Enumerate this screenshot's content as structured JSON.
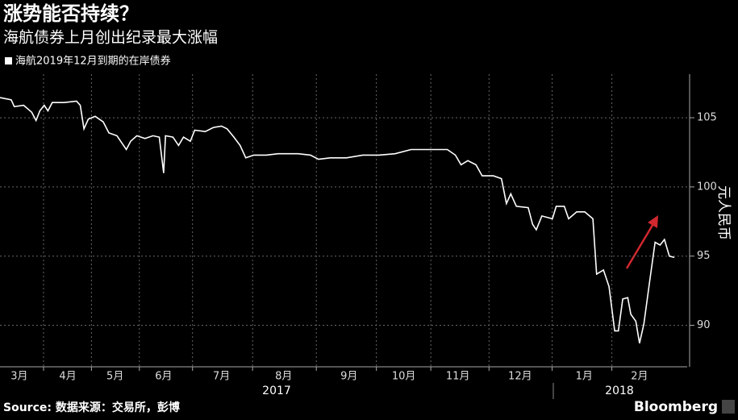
{
  "chart_data": {
    "type": "line",
    "title": "涨势能否持续？",
    "subtitle": "海航债券上月创出纪录最大涨幅",
    "y_label": "元人民币",
    "source": "Source: 数据来源：交易所，彭博",
    "brand": "Bloomberg",
    "year_labels": [
      "2017",
      "2018"
    ],
    "xlim": [
      0.33,
      11.35
    ],
    "ylim": [
      87,
      108.15
    ],
    "yticks": [
      90,
      95,
      100,
      105
    ],
    "xticks": [
      {
        "value": 0.64,
        "label": "3月"
      },
      {
        "value": 1.42,
        "label": "4月"
      },
      {
        "value": 2.18,
        "label": "5月"
      },
      {
        "value": 2.96,
        "label": "6月"
      },
      {
        "value": 3.89,
        "label": "7月"
      },
      {
        "value": 4.89,
        "label": "8月"
      },
      {
        "value": 5.94,
        "label": "9月"
      },
      {
        "value": 6.82,
        "label": "10月"
      },
      {
        "value": 7.69,
        "label": "11月"
      },
      {
        "value": 8.69,
        "label": "12月"
      },
      {
        "value": 9.72,
        "label": "1月"
      },
      {
        "value": 10.61,
        "label": "2月"
      }
    ],
    "grid": true,
    "series": [
      {
        "name": "海航2019年12月到期的在岸债券",
        "color": "#ffffff",
        "x": [
          0.33,
          0.51,
          0.56,
          0.71,
          0.84,
          0.91,
          0.97,
          1.04,
          1.1,
          1.17,
          1.36,
          1.56,
          1.62,
          1.68,
          1.75,
          1.86,
          1.99,
          2.08,
          2.21,
          2.27,
          2.36,
          2.43,
          2.53,
          2.66,
          2.79,
          2.89,
          2.96,
          2.99,
          3.11,
          3.2,
          3.28,
          3.39,
          3.46,
          3.63,
          3.76,
          3.89,
          3.98,
          4.09,
          4.19,
          4.28,
          4.41,
          4.61,
          4.8,
          5.12,
          5.32,
          5.45,
          5.64,
          5.9,
          6.16,
          6.42,
          6.68,
          6.94,
          7.2,
          7.52,
          7.65,
          7.74,
          7.85,
          7.98,
          8.08,
          8.26,
          8.39,
          8.47,
          8.54,
          8.63,
          8.82,
          8.89,
          8.95,
          9.04,
          9.21,
          9.27,
          9.4,
          9.47,
          9.6,
          9.73,
          9.86,
          9.92,
          10.03,
          10.12,
          10.21,
          10.27,
          10.34,
          10.42,
          10.47,
          10.55,
          10.61,
          10.68,
          10.77,
          10.86,
          10.94,
          11.01,
          11.09,
          11.17
        ],
        "values": [
          106.46,
          106.3,
          105.8,
          105.9,
          105.4,
          104.8,
          105.5,
          105.9,
          105.5,
          106.1,
          106.1,
          106.2,
          105.9,
          104.2,
          104.9,
          105.1,
          104.7,
          103.9,
          103.7,
          103.3,
          102.7,
          103.3,
          103.7,
          103.5,
          103.7,
          103.6,
          101.0,
          103.7,
          103.6,
          103.0,
          103.6,
          103.3,
          104.1,
          104.0,
          104.3,
          104.4,
          104.2,
          103.6,
          103.0,
          102.1,
          102.3,
          102.3,
          102.4,
          102.4,
          102.3,
          102.0,
          102.1,
          102.1,
          102.3,
          102.3,
          102.4,
          102.7,
          102.7,
          102.7,
          102.3,
          101.6,
          101.9,
          101.6,
          100.8,
          100.8,
          100.6,
          98.8,
          99.5,
          98.6,
          98.5,
          97.3,
          96.9,
          97.9,
          97.7,
          98.6,
          98.6,
          97.7,
          98.2,
          98.2,
          97.7,
          93.7,
          94.0,
          92.8,
          89.6,
          89.6,
          91.9,
          92.0,
          90.8,
          90.3,
          88.7,
          90.1,
          93.1,
          96.0,
          95.8,
          96.2,
          95.0,
          94.9
        ]
      }
    ]
  }
}
